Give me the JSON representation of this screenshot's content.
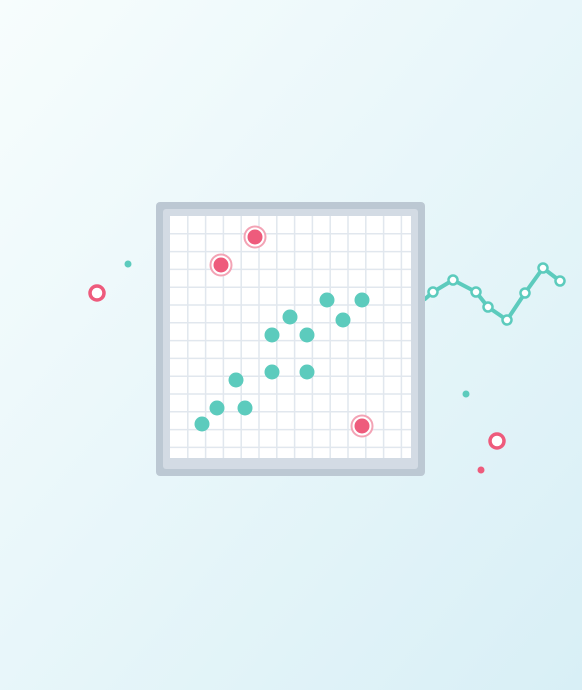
{
  "colors": {
    "background_start": "#f7fdfd",
    "background_end": "#d8eff6",
    "frame_outer": "#bcc8d3",
    "frame_inner": "#d3dbe4",
    "grid_paper": "#ffffff",
    "grid_line": "#e1e7ee",
    "teal": "#5ccbbd",
    "pink": "#ee5b7c",
    "pink_ring": "#f3a3b5",
    "white": "#ffffff"
  },
  "icons": {
    "illustration": "scatter-plot-outlier-illustration",
    "grid_frame": "grid-frame-icon",
    "cluster_point": "teal-dot-icon",
    "outlier_point": "pink-target-icon",
    "line_chart": "zigzag-line-icon",
    "decoration_ring": "pink-ring-icon",
    "decoration_dot": "small-dot-icon"
  },
  "illustration": {
    "cluster_points_count": 13,
    "outlier_points_count": 3,
    "line_vertices_count": 9
  }
}
